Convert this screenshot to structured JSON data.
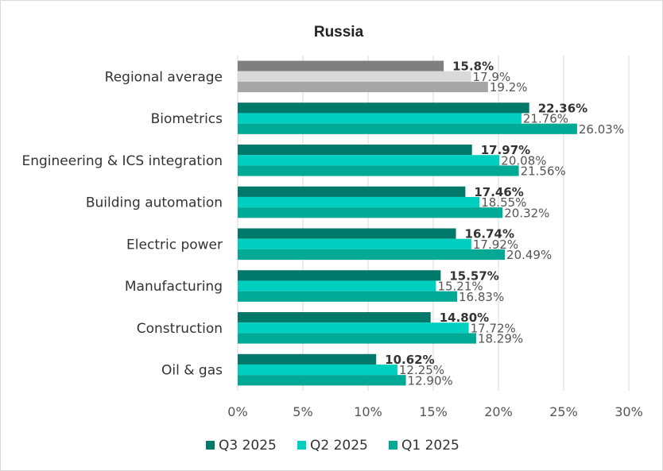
{
  "chart_data": {
    "type": "bar",
    "orientation": "horizontal",
    "title": "Russia",
    "categories": [
      "Regional average",
      "Biometrics",
      "Engineering & ICS integration",
      "Building automation",
      "Electric power",
      "Manufacturing",
      "Construction",
      "Oil & gas"
    ],
    "series": [
      {
        "name": "Q3 2025",
        "values": [
          15.8,
          22.36,
          17.97,
          17.46,
          16.74,
          15.57,
          14.8,
          10.62
        ],
        "labels": [
          "15.8%",
          "22.36%",
          "17.97%",
          "17.46%",
          "16.74%",
          "15.57%",
          "14.80%",
          "10.62%"
        ],
        "color": "#00796b",
        "highlight_color": "#7f7f7f"
      },
      {
        "name": "Q2 2025",
        "values": [
          17.9,
          21.76,
          20.08,
          18.55,
          17.92,
          15.21,
          17.72,
          12.25
        ],
        "labels": [
          "17.9%",
          "21.76%",
          "20.08%",
          "18.55%",
          "17.92%",
          "15.21%",
          "17.72%",
          "12.25%"
        ],
        "color": "#00cfbf",
        "highlight_color": "#d9d9d9"
      },
      {
        "name": "Q1 2025",
        "values": [
          19.2,
          26.03,
          21.56,
          20.32,
          20.49,
          16.83,
          18.29,
          12.9
        ],
        "labels": [
          "19.2%",
          "26.03%",
          "21.56%",
          "20.32%",
          "20.49%",
          "16.83%",
          "18.29%",
          "12.90%"
        ],
        "color": "#00a896",
        "highlight_color": "#a6a6a6"
      }
    ],
    "xlim": [
      0,
      30
    ],
    "xticks": [
      0,
      5,
      10,
      15,
      20,
      25,
      30
    ],
    "xtick_labels": [
      "0%",
      "5%",
      "10%",
      "15%",
      "20%",
      "25%",
      "30%"
    ],
    "grid": "vertical",
    "legend": "bottom-center",
    "xlabel": "",
    "ylabel": ""
  }
}
